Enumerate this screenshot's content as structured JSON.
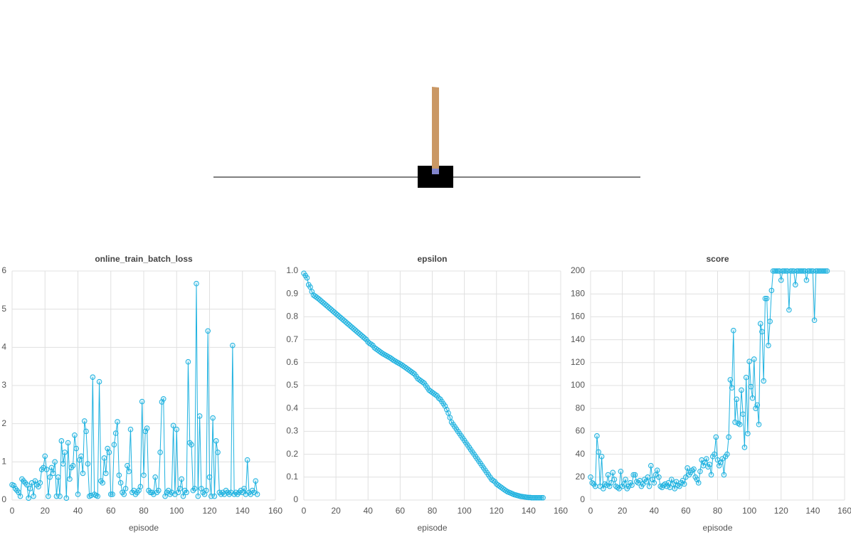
{
  "chart_data": [
    {
      "type": "line",
      "title": "online_train_batch_loss",
      "xlabel": "episode",
      "color": "#1fb2e0",
      "xlim": [
        0,
        160
      ],
      "xticks": [
        0,
        20,
        40,
        60,
        80,
        100,
        120,
        140,
        160
      ],
      "ylim": [
        0,
        6
      ],
      "yticks": [
        0,
        1,
        2,
        3,
        4,
        5,
        6
      ],
      "grid": true,
      "x": [
        0,
        1,
        2,
        3,
        4,
        5,
        6,
        7,
        8,
        9,
        10,
        11,
        12,
        13,
        14,
        15,
        16,
        17,
        18,
        19,
        20,
        21,
        22,
        23,
        24,
        25,
        26,
        27,
        28,
        29,
        30,
        31,
        32,
        33,
        34,
        35,
        36,
        37,
        38,
        39,
        40,
        41,
        42,
        43,
        44,
        45,
        46,
        47,
        48,
        49,
        50,
        51,
        52,
        53,
        54,
        55,
        56,
        57,
        58,
        59,
        60,
        61,
        62,
        63,
        64,
        65,
        66,
        67,
        68,
        69,
        70,
        71,
        72,
        73,
        74,
        75,
        76,
        77,
        78,
        79,
        80,
        81,
        82,
        83,
        84,
        85,
        86,
        87,
        88,
        89,
        90,
        91,
        92,
        93,
        94,
        95,
        96,
        97,
        98,
        99,
        100,
        101,
        102,
        103,
        104,
        105,
        106,
        107,
        108,
        109,
        110,
        111,
        112,
        113,
        114,
        115,
        116,
        117,
        118,
        119,
        120,
        121,
        122,
        123,
        124,
        125,
        126,
        127,
        128,
        129,
        130,
        131,
        132,
        133,
        134,
        135,
        136,
        137,
        138,
        139,
        140,
        141,
        142,
        143,
        144,
        145,
        146,
        147,
        148,
        149
      ],
      "values": [
        0.4,
        0.38,
        0.3,
        0.25,
        0.2,
        0.1,
        0.55,
        0.5,
        0.45,
        0.4,
        0.05,
        0.3,
        0.45,
        0.1,
        0.5,
        0.4,
        0.35,
        0.45,
        0.8,
        0.85,
        1.15,
        0.8,
        0.1,
        0.6,
        0.85,
        0.7,
        1.0,
        0.1,
        0.6,
        0.1,
        1.55,
        0.95,
        1.25,
        0.05,
        1.5,
        0.55,
        0.85,
        0.9,
        1.7,
        1.35,
        0.15,
        1.05,
        1.15,
        0.7,
        2.07,
        1.8,
        0.95,
        0.1,
        0.12,
        3.22,
        0.15,
        0.12,
        0.1,
        3.1,
        0.5,
        0.45,
        1.1,
        0.7,
        1.35,
        1.25,
        0.15,
        0.15,
        1.45,
        1.75,
        2.05,
        0.65,
        0.45,
        0.2,
        0.15,
        0.3,
        0.9,
        0.75,
        1.85,
        0.2,
        0.25,
        0.15,
        0.2,
        0.25,
        0.35,
        2.58,
        0.65,
        1.8,
        1.88,
        0.25,
        0.2,
        0.2,
        0.15,
        0.6,
        0.2,
        0.25,
        1.25,
        2.57,
        2.65,
        0.1,
        0.2,
        0.25,
        0.15,
        0.2,
        1.95,
        0.15,
        1.85,
        0.2,
        0.3,
        0.55,
        0.1,
        0.25,
        0.2,
        3.62,
        1.5,
        1.45,
        0.25,
        0.3,
        5.67,
        0.1,
        2.2,
        0.3,
        0.2,
        0.15,
        0.25,
        4.43,
        0.6,
        0.1,
        2.15,
        0.1,
        1.55,
        1.25,
        0.2,
        0.15,
        0.2,
        0.15,
        0.25,
        0.2,
        0.15,
        0.2,
        4.05,
        0.15,
        0.2,
        0.15,
        0.2,
        0.25,
        0.2,
        0.3,
        0.15,
        1.05,
        0.2,
        0.15,
        0.25,
        0.2,
        0.5,
        0.15
      ]
    },
    {
      "type": "line",
      "title": "epsilon",
      "xlabel": "episode",
      "color": "#1fb2e0",
      "xlim": [
        0,
        160
      ],
      "xticks": [
        0,
        20,
        40,
        60,
        80,
        100,
        120,
        140,
        160
      ],
      "ylim": [
        0,
        1
      ],
      "yticks": [
        0,
        0.1,
        0.2,
        0.3,
        0.4,
        0.5,
        0.6,
        0.7,
        0.8,
        0.9,
        {
          "value": 1,
          "label": "1.0"
        }
      ],
      "grid": true,
      "x": [
        0,
        1,
        2,
        3,
        4,
        5,
        6,
        7,
        8,
        9,
        10,
        11,
        12,
        13,
        14,
        15,
        16,
        17,
        18,
        19,
        20,
        21,
        22,
        23,
        24,
        25,
        26,
        27,
        28,
        29,
        30,
        31,
        32,
        33,
        34,
        35,
        36,
        37,
        38,
        39,
        40,
        41,
        42,
        43,
        44,
        45,
        46,
        47,
        48,
        49,
        50,
        51,
        52,
        53,
        54,
        55,
        56,
        57,
        58,
        59,
        60,
        61,
        62,
        63,
        64,
        65,
        66,
        67,
        68,
        69,
        70,
        71,
        72,
        73,
        74,
        75,
        76,
        77,
        78,
        79,
        80,
        81,
        82,
        83,
        84,
        85,
        86,
        87,
        88,
        89,
        90,
        91,
        92,
        93,
        94,
        95,
        96,
        97,
        98,
        99,
        100,
        101,
        102,
        103,
        104,
        105,
        106,
        107,
        108,
        109,
        110,
        111,
        112,
        113,
        114,
        115,
        116,
        117,
        118,
        119,
        120,
        121,
        122,
        123,
        124,
        125,
        126,
        127,
        128,
        129,
        130,
        131,
        132,
        133,
        134,
        135,
        136,
        137,
        138,
        139,
        140,
        141,
        142,
        143,
        144,
        145,
        146,
        147,
        148,
        149
      ],
      "values": [
        0.99,
        0.98,
        0.97,
        0.94,
        0.93,
        0.91,
        0.895,
        0.89,
        0.885,
        0.88,
        0.874,
        0.868,
        0.862,
        0.856,
        0.85,
        0.844,
        0.838,
        0.832,
        0.826,
        0.82,
        0.814,
        0.808,
        0.802,
        0.796,
        0.79,
        0.784,
        0.778,
        0.772,
        0.766,
        0.76,
        0.754,
        0.748,
        0.742,
        0.736,
        0.73,
        0.724,
        0.718,
        0.712,
        0.706,
        0.7,
        0.69,
        0.684,
        0.68,
        0.675,
        0.665,
        0.66,
        0.655,
        0.65,
        0.645,
        0.64,
        0.636,
        0.632,
        0.628,
        0.624,
        0.62,
        0.615,
        0.61,
        0.606,
        0.602,
        0.598,
        0.594,
        0.59,
        0.585,
        0.58,
        0.575,
        0.57,
        0.565,
        0.56,
        0.555,
        0.55,
        0.54,
        0.53,
        0.525,
        0.52,
        0.515,
        0.51,
        0.5,
        0.49,
        0.48,
        0.475,
        0.47,
        0.465,
        0.46,
        0.455,
        0.445,
        0.44,
        0.43,
        0.42,
        0.41,
        0.395,
        0.38,
        0.36,
        0.34,
        0.33,
        0.32,
        0.31,
        0.3,
        0.29,
        0.28,
        0.27,
        0.26,
        0.25,
        0.24,
        0.23,
        0.22,
        0.21,
        0.2,
        0.19,
        0.18,
        0.17,
        0.16,
        0.15,
        0.14,
        0.13,
        0.12,
        0.11,
        0.1,
        0.09,
        0.085,
        0.08,
        0.07,
        0.065,
        0.06,
        0.055,
        0.05,
        0.045,
        0.04,
        0.036,
        0.033,
        0.03,
        0.027,
        0.024,
        0.022,
        0.02,
        0.018,
        0.016,
        0.015,
        0.014,
        0.013,
        0.012,
        0.011,
        0.011,
        0.01,
        0.01,
        0.01,
        0.01,
        0.01,
        0.01,
        0.01,
        0.01
      ]
    },
    {
      "type": "line",
      "title": "score",
      "xlabel": "episode",
      "color": "#1fb2e0",
      "xlim": [
        0,
        160
      ],
      "xticks": [
        0,
        20,
        40,
        60,
        80,
        100,
        120,
        140,
        160
      ],
      "ylim": [
        0,
        200
      ],
      "yticks": [
        0,
        20,
        40,
        60,
        80,
        100,
        120,
        140,
        160,
        180,
        200
      ],
      "grid": true,
      "x": [
        0,
        1,
        2,
        3,
        4,
        5,
        6,
        7,
        8,
        9,
        10,
        11,
        12,
        13,
        14,
        15,
        16,
        17,
        18,
        19,
        20,
        21,
        22,
        23,
        24,
        25,
        26,
        27,
        28,
        29,
        30,
        31,
        32,
        33,
        34,
        35,
        36,
        37,
        38,
        39,
        40,
        41,
        42,
        43,
        44,
        45,
        46,
        47,
        48,
        49,
        50,
        51,
        52,
        53,
        54,
        55,
        56,
        57,
        58,
        59,
        60,
        61,
        62,
        63,
        64,
        65,
        66,
        67,
        68,
        69,
        70,
        71,
        72,
        73,
        74,
        75,
        76,
        77,
        78,
        79,
        80,
        81,
        82,
        83,
        84,
        85,
        86,
        87,
        88,
        89,
        90,
        91,
        92,
        93,
        94,
        95,
        96,
        97,
        98,
        99,
        100,
        101,
        102,
        103,
        104,
        105,
        106,
        107,
        108,
        109,
        110,
        111,
        112,
        113,
        114,
        115,
        116,
        117,
        118,
        119,
        120,
        121,
        122,
        123,
        124,
        125,
        126,
        127,
        128,
        129,
        130,
        131,
        132,
        133,
        134,
        135,
        136,
        137,
        138,
        139,
        140,
        141,
        142,
        143,
        144,
        145,
        146,
        147,
        148,
        149
      ],
      "values": [
        20,
        15,
        14,
        12,
        56,
        42,
        12,
        38,
        10,
        14,
        13,
        22,
        12,
        15,
        24,
        18,
        12,
        11,
        10,
        25,
        12,
        14,
        18,
        10,
        12,
        15,
        13,
        22,
        22,
        16,
        15,
        17,
        12,
        14,
        18,
        16,
        20,
        12,
        30,
        18,
        15,
        22,
        26,
        20,
        12,
        11,
        13,
        14,
        12,
        15,
        11,
        18,
        14,
        10,
        16,
        13,
        12,
        15,
        17,
        14,
        20,
        28,
        22,
        24,
        26,
        27,
        20,
        18,
        15,
        25,
        35,
        30,
        33,
        36,
        29,
        31,
        22,
        38,
        40,
        55,
        35,
        30,
        33,
        36,
        22,
        38,
        40,
        55,
        105,
        98,
        148,
        68,
        88,
        67,
        66,
        96,
        75,
        46,
        107,
        58,
        121,
        99,
        89,
        123,
        80,
        83,
        66,
        154,
        147,
        104,
        176,
        176,
        135,
        156,
        183,
        200,
        200,
        200,
        200,
        200,
        192,
        200,
        200,
        200,
        200,
        166,
        200,
        200,
        200,
        188,
        200,
        200,
        200,
        200,
        200,
        200,
        192,
        200,
        200,
        200,
        200,
        157,
        200,
        200,
        200,
        200,
        200,
        200,
        200,
        200
      ]
    }
  ]
}
